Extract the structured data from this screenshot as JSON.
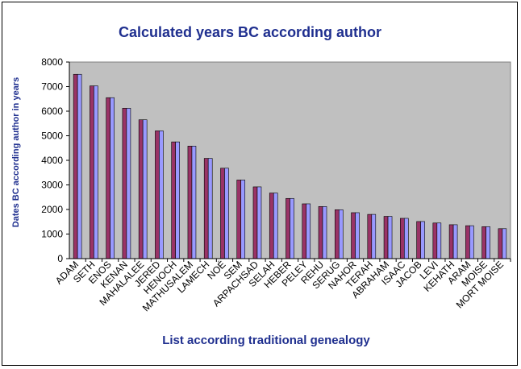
{
  "chart_data": {
    "type": "bar",
    "title": "Calculated years BC according author",
    "xlabel": "List according traditional genealogy",
    "ylabel": "Dates BC according author in years",
    "ylim": [
      0,
      8000
    ],
    "yticks": [
      0,
      1000,
      2000,
      3000,
      4000,
      5000,
      6000,
      7000,
      8000
    ],
    "categories": [
      "ADAM",
      "SETH",
      "ENOS",
      "KENAN",
      "MAHALALEE",
      "JERED",
      "HENOCH",
      "MATHUSALEM",
      "LAMECH",
      "NOÉ",
      "SEM",
      "ARPACHSAD",
      "SELAH",
      "HEBER",
      "PELEY",
      "REHU",
      "SERUG",
      "NAHOR",
      "TERAH",
      "ABRAHAM",
      "ISAAC",
      "JACOB",
      "LEVI",
      "KEHATH",
      "ARAM",
      "MOISE",
      "MORT MOISE"
    ],
    "series": [
      {
        "values": [
          7500,
          7030,
          6550,
          6120,
          5650,
          5200,
          4750,
          4580,
          4080,
          3680,
          3200,
          2920,
          2670,
          2450,
          2230,
          2120,
          1990,
          1870,
          1800,
          1720,
          1640,
          1510,
          1450,
          1380,
          1340,
          1300,
          1220
        ],
        "color": "#993366"
      },
      {
        "values": [
          7500,
          7030,
          6550,
          6120,
          5650,
          5200,
          4750,
          4580,
          4080,
          3680,
          3200,
          2920,
          2670,
          2450,
          2230,
          2120,
          1990,
          1870,
          1800,
          1720,
          1640,
          1510,
          1450,
          1380,
          1340,
          1300,
          1220
        ],
        "color": "#9999ff"
      }
    ],
    "plot_background": "#c0c0c0",
    "grid": false,
    "legend": "none"
  }
}
